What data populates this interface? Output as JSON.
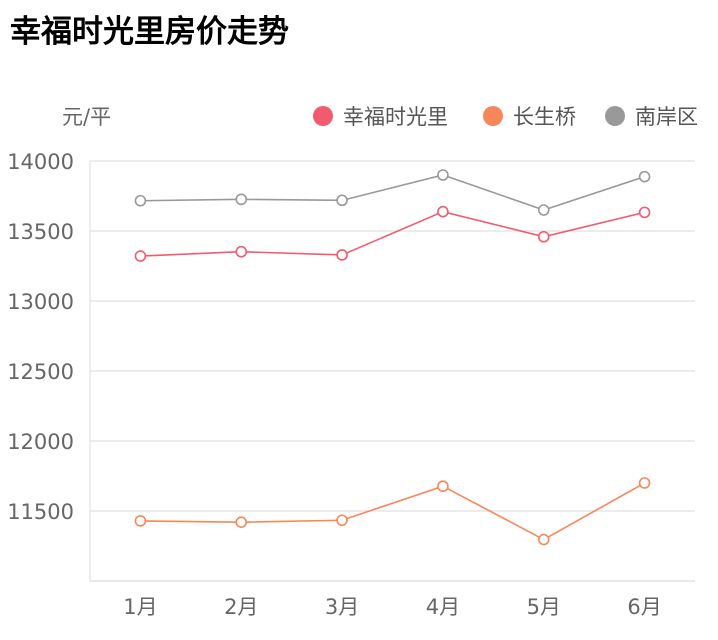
{
  "chart_data": {
    "type": "line",
    "title": "幸福时光里房价走势",
    "ylabel": "元/平",
    "xlabel": "",
    "categories": [
      "1月",
      "2月",
      "3月",
      "4月",
      "5月",
      "6月"
    ],
    "ylim": [
      11000,
      14000
    ],
    "yticks": [
      11500,
      12000,
      12500,
      13000,
      13500,
      14000
    ],
    "grid": true,
    "legend_position": "top-right",
    "series": [
      {
        "name": "幸福时光里",
        "color": "#f25a6e",
        "values": [
          13321,
          13352,
          13329,
          13638,
          13459,
          13633
        ]
      },
      {
        "name": "长生桥",
        "color": "#f7875a",
        "values": [
          11429,
          11420,
          11434,
          11677,
          11296,
          11700
        ]
      },
      {
        "name": "南岸区",
        "color": "#999999",
        "values": [
          13716,
          13726,
          13719,
          13900,
          13650,
          13888
        ]
      }
    ]
  }
}
